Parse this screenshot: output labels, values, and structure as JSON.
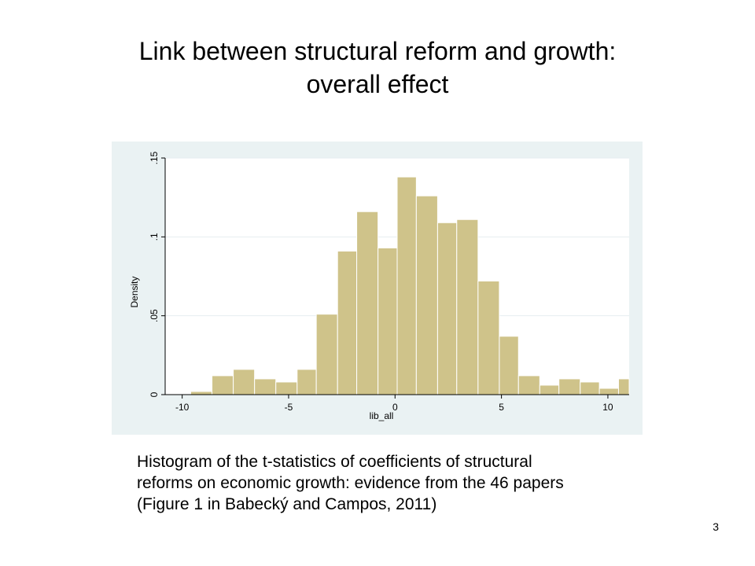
{
  "slide": {
    "title_line1": "Link between structural reform and growth:",
    "title_line2": "overall effect",
    "caption_line1": "Histogram of the t-statistics of coefficients of structural",
    "caption_line2": "reforms on economic growth: evidence from the 46 papers",
    "caption_line3": "(Figure 1 in Babecký and Campos, 2011)",
    "slide_number": "3"
  },
  "chart_data": {
    "type": "bar",
    "xlabel": "lib_all",
    "ylabel": "Density",
    "xlim": [
      -10.8,
      11
    ],
    "ylim": [
      0,
      0.15
    ],
    "x_ticks": [
      -10,
      -5,
      0,
      5,
      10
    ],
    "x_tick_labels": [
      "-10",
      "-5",
      "0",
      "5",
      "10"
    ],
    "y_ticks": [
      0,
      0.05,
      0.1,
      0.15
    ],
    "y_tick_labels": [
      "0",
      ".05",
      ".1",
      ".15"
    ],
    "grid": true,
    "bar_color": "#cfc38a",
    "bar_edge_color": "#ffffff",
    "panel_color": "#eaf2f3",
    "bins": [
      {
        "x0": -9.6,
        "x1": -8.6,
        "value": 0.002
      },
      {
        "x0": -8.6,
        "x1": -7.6,
        "value": 0.012
      },
      {
        "x0": -7.6,
        "x1": -6.6,
        "value": 0.016
      },
      {
        "x0": -6.6,
        "x1": -5.6,
        "value": 0.01
      },
      {
        "x0": -5.6,
        "x1": -4.6,
        "value": 0.008
      },
      {
        "x0": -4.6,
        "x1": -3.7,
        "value": 0.016
      },
      {
        "x0": -3.7,
        "x1": -2.7,
        "value": 0.051
      },
      {
        "x0": -2.7,
        "x1": -1.8,
        "value": 0.091
      },
      {
        "x0": -1.8,
        "x1": -0.8,
        "value": 0.116
      },
      {
        "x0": -0.8,
        "x1": 0.1,
        "value": 0.093
      },
      {
        "x0": 0.1,
        "x1": 1.0,
        "value": 0.138
      },
      {
        "x0": 1.0,
        "x1": 2.0,
        "value": 0.126
      },
      {
        "x0": 2.0,
        "x1": 2.9,
        "value": 0.109
      },
      {
        "x0": 2.9,
        "x1": 3.9,
        "value": 0.111
      },
      {
        "x0": 3.9,
        "x1": 4.9,
        "value": 0.072
      },
      {
        "x0": 4.9,
        "x1": 5.8,
        "value": 0.037
      },
      {
        "x0": 5.8,
        "x1": 6.8,
        "value": 0.012
      },
      {
        "x0": 6.8,
        "x1": 7.7,
        "value": 0.006
      },
      {
        "x0": 7.7,
        "x1": 8.7,
        "value": 0.01
      },
      {
        "x0": 8.7,
        "x1": 9.6,
        "value": 0.008
      },
      {
        "x0": 9.6,
        "x1": 10.5,
        "value": 0.004
      },
      {
        "x0": 10.5,
        "x1": 11.0,
        "value": 0.01
      }
    ]
  }
}
